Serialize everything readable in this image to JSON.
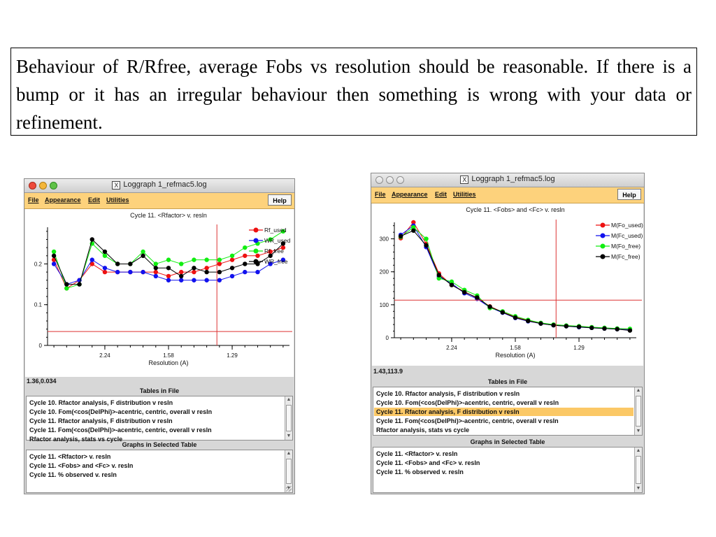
{
  "caption": "Behaviour of R/Rfree, average Fobs vs resolution should be reasonable. If there is a bump or it has an irregular behaviour then something is wrong with your data or refinement.",
  "windows": [
    {
      "title": "Loggraph 1_refmac5.log",
      "menu": {
        "file": "File",
        "appearance": "Appearance",
        "edit": "Edit",
        "utilities": "Utilities",
        "help": "Help"
      },
      "coord_readout": "1.36,0.034",
      "tables_heading": "Tables in File",
      "tables": [
        "Cycle   10. Rfactor analysis, F distribution v resln",
        "Cycle   10. Fom(<cos(DelPhi)>-acentric, centric, overall v resln",
        "Cycle   11. Rfactor analysis, F distribution v resln",
        "Cycle   11. Fom(<cos(DelPhi)>-acentric, centric, overall v resln",
        "Rfactor analysis, stats vs cycle"
      ],
      "selected_table": -1,
      "graphs_heading": "Graphs in Selected Table",
      "graphs": [
        "Cycle   11. <Rfactor> v. resln",
        "Cycle   11. <Fobs> and <Fc> v. resln",
        "Cycle   11. % observed v. resln"
      ]
    },
    {
      "title": "Loggraph 1_refmac5.log",
      "menu": {
        "file": "File",
        "appearance": "Appearance",
        "edit": "Edit",
        "utilities": "Utilities",
        "help": "Help"
      },
      "coord_readout": "1.43,113.9",
      "tables_heading": "Tables in File",
      "tables": [
        "Cycle   10. Rfactor analysis, F distribution v resln",
        "Cycle   10. Fom(<cos(DelPhi)>-acentric, centric, overall v resln",
        "Cycle   11. Rfactor analysis, F distribution v resln",
        "Cycle   11. Fom(<cos(DelPhi)>-acentric, centric, overall v resln",
        "Rfactor analysis, stats vs cycle"
      ],
      "selected_table": 2,
      "graphs_heading": "Graphs in Selected Table",
      "graphs": [
        "Cycle   11. <Rfactor> v. resln",
        "Cycle   11. <Fobs> and <Fc> v. resln",
        "Cycle   11. % observed v. resln"
      ]
    }
  ],
  "chart_data": [
    {
      "type": "line",
      "title": "Cycle    11. <Rfactor> v. resln",
      "xlabel": "Resolution (A)",
      "xticks": [
        "2.24",
        "1.58",
        "1.29"
      ],
      "xtick_index": [
        4.5,
        9.5,
        14.5
      ],
      "yticks": [
        "0",
        "0.1",
        "0.2"
      ],
      "yvals": [
        0,
        0.1,
        0.2
      ],
      "ylim": [
        0,
        0.29
      ],
      "legend": "top-right",
      "crosshair": {
        "x_index": 13.3,
        "y": 0.034
      },
      "series": [
        {
          "name": "Rf_used",
          "color": "#ee1111",
          "values": [
            0.21,
            0.14,
            0.16,
            0.2,
            0.18,
            0.18,
            0.18,
            0.18,
            0.18,
            0.17,
            0.18,
            0.18,
            0.19,
            0.2,
            0.21,
            0.22,
            0.22,
            0.23,
            0.24
          ]
        },
        {
          "name": "WR_used",
          "color": "#1111ee",
          "values": [
            0.2,
            0.15,
            0.16,
            0.21,
            0.19,
            0.18,
            0.18,
            0.18,
            0.17,
            0.16,
            0.16,
            0.16,
            0.16,
            0.16,
            0.17,
            0.18,
            0.18,
            0.2,
            0.21
          ]
        },
        {
          "name": "Rf_free",
          "color": "#11ee11",
          "values": [
            0.23,
            0.14,
            0.15,
            0.25,
            0.22,
            0.2,
            0.2,
            0.23,
            0.2,
            0.21,
            0.2,
            0.21,
            0.21,
            0.21,
            0.22,
            0.24,
            0.25,
            0.26,
            0.28
          ]
        },
        {
          "name": "WR_free",
          "color": "#000000",
          "values": [
            0.22,
            0.15,
            0.15,
            0.26,
            0.23,
            0.2,
            0.2,
            0.22,
            0.19,
            0.19,
            0.17,
            0.19,
            0.18,
            0.18,
            0.19,
            0.2,
            0.2,
            0.22,
            0.25
          ]
        }
      ]
    },
    {
      "type": "line",
      "title": "Cycle    11. <Fobs> and <Fc> v. resln",
      "xlabel": "Resolution (A)",
      "xticks": [
        "2.24",
        "1.58",
        "1.29"
      ],
      "xtick_index": [
        4.5,
        9.5,
        14.5
      ],
      "yticks": [
        "0",
        "100",
        "200",
        "300"
      ],
      "yvals": [
        0,
        100,
        200,
        300
      ],
      "ylim": [
        0,
        350
      ],
      "legend": "top-right",
      "crosshair": {
        "x_index": 12.7,
        "y": 113.9
      },
      "series": [
        {
          "name": "M(Fo_used)",
          "color": "#ee1111",
          "values": [
            302,
            350,
            285,
            195,
            160,
            140,
            120,
            95,
            78,
            63,
            52,
            44,
            39,
            36,
            34,
            31,
            29,
            27,
            25
          ]
        },
        {
          "name": "M(Fc_used)",
          "color": "#1111ee",
          "values": [
            312,
            340,
            275,
            185,
            165,
            135,
            118,
            92,
            76,
            60,
            50,
            43,
            38,
            35,
            32,
            30,
            28,
            26,
            24
          ]
        },
        {
          "name": "M(Fo_free)",
          "color": "#11ee11",
          "values": [
            306,
            335,
            300,
            180,
            170,
            145,
            128,
            90,
            80,
            65,
            54,
            45,
            40,
            37,
            35,
            32,
            30,
            28,
            27
          ]
        },
        {
          "name": "M(Fc_free)",
          "color": "#000000",
          "values": [
            308,
            325,
            280,
            190,
            160,
            138,
            122,
            94,
            77,
            61,
            51,
            43,
            38,
            35,
            33,
            30,
            28,
            26,
            22
          ]
        }
      ]
    }
  ]
}
